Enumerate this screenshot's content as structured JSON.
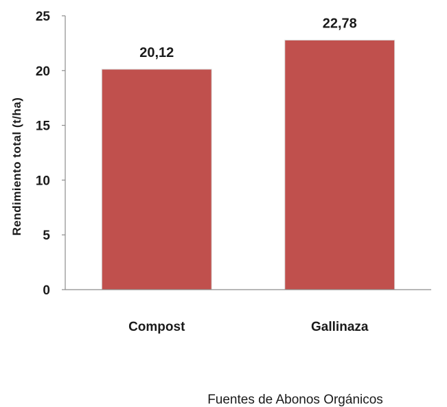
{
  "chart_data": {
    "type": "bar",
    "categories": [
      "Compost",
      "Gallinaza"
    ],
    "values": [
      20.12,
      22.78
    ],
    "value_labels": [
      "20,12",
      "22,78"
    ],
    "yticks": [
      0,
      5,
      10,
      15,
      20,
      25
    ],
    "ylim": [
      0,
      25
    ],
    "xlabel": "Fuentes de Abonos Orgánicos",
    "ylabel": "Rendimiento total (t/ha)",
    "grid": false,
    "legend": "none",
    "bar_color": "#c0504d",
    "axis_color": "#8c8c8c"
  }
}
